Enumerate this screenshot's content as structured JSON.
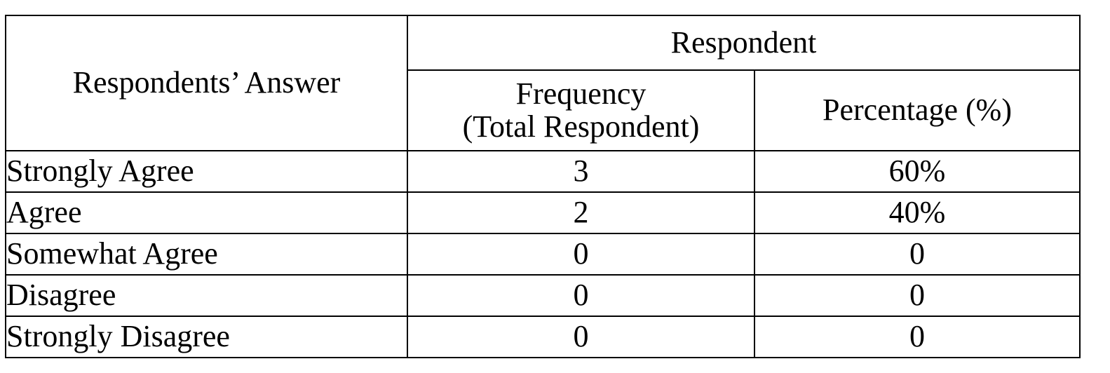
{
  "table": {
    "header": {
      "answer": "Respondents’ Answer",
      "group": "Respondent",
      "frequency_line1": "Frequency",
      "frequency_line2": "(Total Respondent)",
      "percentage": "Percentage (%)"
    },
    "rows": [
      {
        "answer": "Strongly Agree",
        "frequency": "3",
        "percentage": "60%"
      },
      {
        "answer": "Agree",
        "frequency": "2",
        "percentage": "40%"
      },
      {
        "answer": "Somewhat Agree",
        "frequency": "0",
        "percentage": "0"
      },
      {
        "answer": "Disagree",
        "frequency": "0",
        "percentage": "0"
      },
      {
        "answer": "Strongly Disagree",
        "frequency": "0",
        "percentage": "0"
      }
    ]
  }
}
